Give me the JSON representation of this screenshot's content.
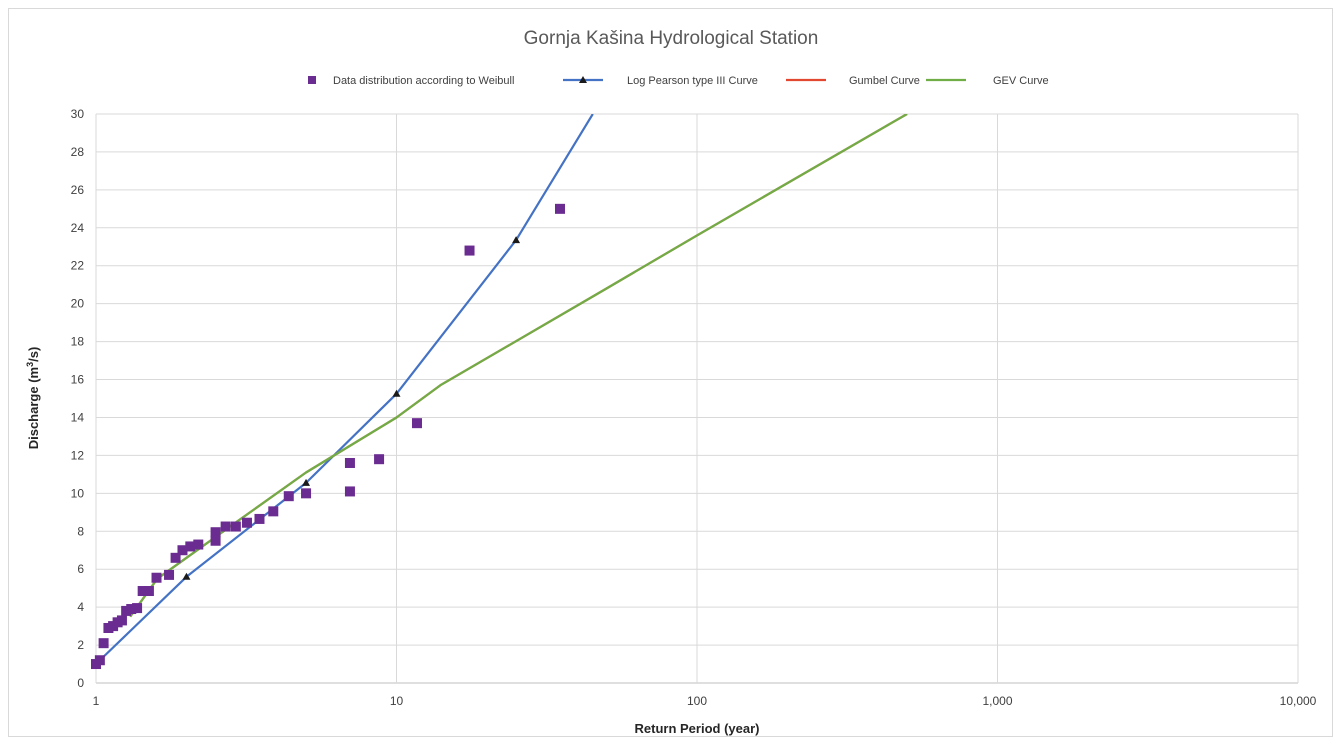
{
  "chart_data": {
    "type": "scatter",
    "title": "Gornja Kašina Hydrological Station",
    "xlabel": "Return Period (year)",
    "ylabel_main": "Discharge (m",
    "ylabel_sup": "3",
    "ylabel_tail": "/s)",
    "x_scale": "log",
    "xlim": [
      1,
      10000
    ],
    "ylim": [
      0,
      30
    ],
    "x_ticks": [
      1,
      10,
      100,
      1000,
      10000
    ],
    "x_tick_labels": [
      "1",
      "10",
      "100",
      "1,000",
      "10,000"
    ],
    "y_ticks": [
      0,
      2,
      4,
      6,
      8,
      10,
      12,
      14,
      16,
      18,
      20,
      22,
      24,
      26,
      28,
      30
    ],
    "y_tick_labels": [
      "0",
      "2",
      "4",
      "6",
      "8",
      "10",
      "12",
      "14",
      "16",
      "18",
      "20",
      "22",
      "24",
      "26",
      "28",
      "30"
    ],
    "grid": true,
    "legend_position": "top",
    "series": [
      {
        "name": "Data distribution according to Weibull",
        "kind": "scatter",
        "color": "#6a2c91",
        "marker": "square",
        "x": [
          1.0,
          1.03,
          1.06,
          1.1,
          1.14,
          1.18,
          1.22,
          1.26,
          1.31,
          1.37,
          1.43,
          1.5,
          1.59,
          1.75,
          1.84,
          1.94,
          2.06,
          2.19,
          2.5,
          2.5,
          2.7,
          2.92,
          3.18,
          3.5,
          3.89,
          4.38,
          5.0,
          7.0,
          7.0,
          8.75,
          11.7,
          17.5,
          35.0
        ],
        "y": [
          1.0,
          1.2,
          2.1,
          2.9,
          3.0,
          3.2,
          3.3,
          3.8,
          3.9,
          3.95,
          4.85,
          4.85,
          5.55,
          5.7,
          6.6,
          7.0,
          7.2,
          7.3,
          7.5,
          7.95,
          8.25,
          8.25,
          8.45,
          8.65,
          9.05,
          9.85,
          10.0,
          10.1,
          11.6,
          11.8,
          13.7,
          22.8,
          25.0
        ]
      },
      {
        "name": "Log Pearson type III Curve",
        "kind": "line",
        "color": "#4472c4",
        "marker": "triangle",
        "x": [
          1.0,
          2.0,
          5.0,
          10.0,
          25.0,
          45.0
        ],
        "y": [
          1.0,
          5.6,
          10.55,
          15.25,
          23.35,
          30.0
        ],
        "marker_x": [
          2.0,
          5.0,
          10.0,
          25.0
        ],
        "marker_y": [
          5.6,
          10.55,
          15.25,
          23.35
        ]
      },
      {
        "name": "Gumbel Curve",
        "kind": "line",
        "color": "#e2472f",
        "x": [
          1.3,
          1.6,
          2.0,
          3.0,
          5.0,
          10.0,
          14.0,
          50.0,
          100.0,
          500.0
        ],
        "y": [
          3.5,
          5.5,
          6.6,
          8.6,
          11.1,
          14.0,
          15.7,
          20.8,
          23.6,
          30.0
        ]
      },
      {
        "name": "GEV Curve",
        "kind": "line",
        "color": "#70ad47",
        "x": [
          1.3,
          1.6,
          2.0,
          3.0,
          5.0,
          10.0,
          14.0,
          50.0,
          100.0,
          500.0
        ],
        "y": [
          3.5,
          5.5,
          6.6,
          8.6,
          11.1,
          14.0,
          15.7,
          20.8,
          23.6,
          30.0
        ]
      }
    ]
  }
}
